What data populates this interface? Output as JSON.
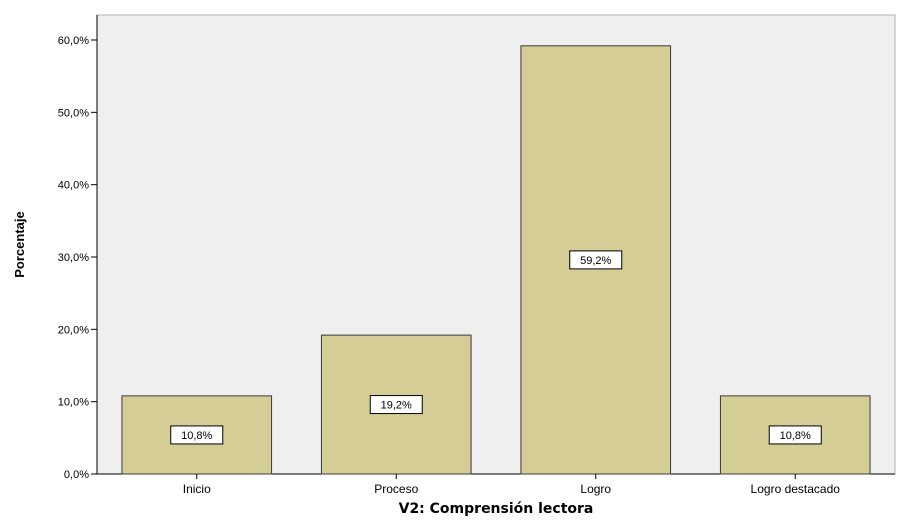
{
  "chart_data": {
    "type": "bar",
    "title": "",
    "xlabel": "V2: Comprensión lectora",
    "ylabel": "Porcentaje",
    "categories": [
      "Inicio",
      "Proceso",
      "Logro",
      "Logro destacado"
    ],
    "values": [
      10.8,
      19.2,
      59.2,
      10.8
    ],
    "data_labels": [
      "10,8%",
      "19,2%",
      "59,2%",
      "10,8%"
    ],
    "y_ticks": [
      0,
      10,
      20,
      30,
      40,
      50,
      60
    ],
    "y_tick_labels": [
      "0,0%",
      "10,0%",
      "20,0%",
      "30,0%",
      "40,0%",
      "50,0%",
      "60,0%"
    ],
    "ylim": [
      0,
      60.0
    ],
    "grid": false,
    "legend": "none",
    "colors": {
      "plot_background": "#efefef",
      "bar_fill": "#d4cd95",
      "bar_stroke": "#3a3a3a",
      "label_box": "#ffffff"
    }
  }
}
